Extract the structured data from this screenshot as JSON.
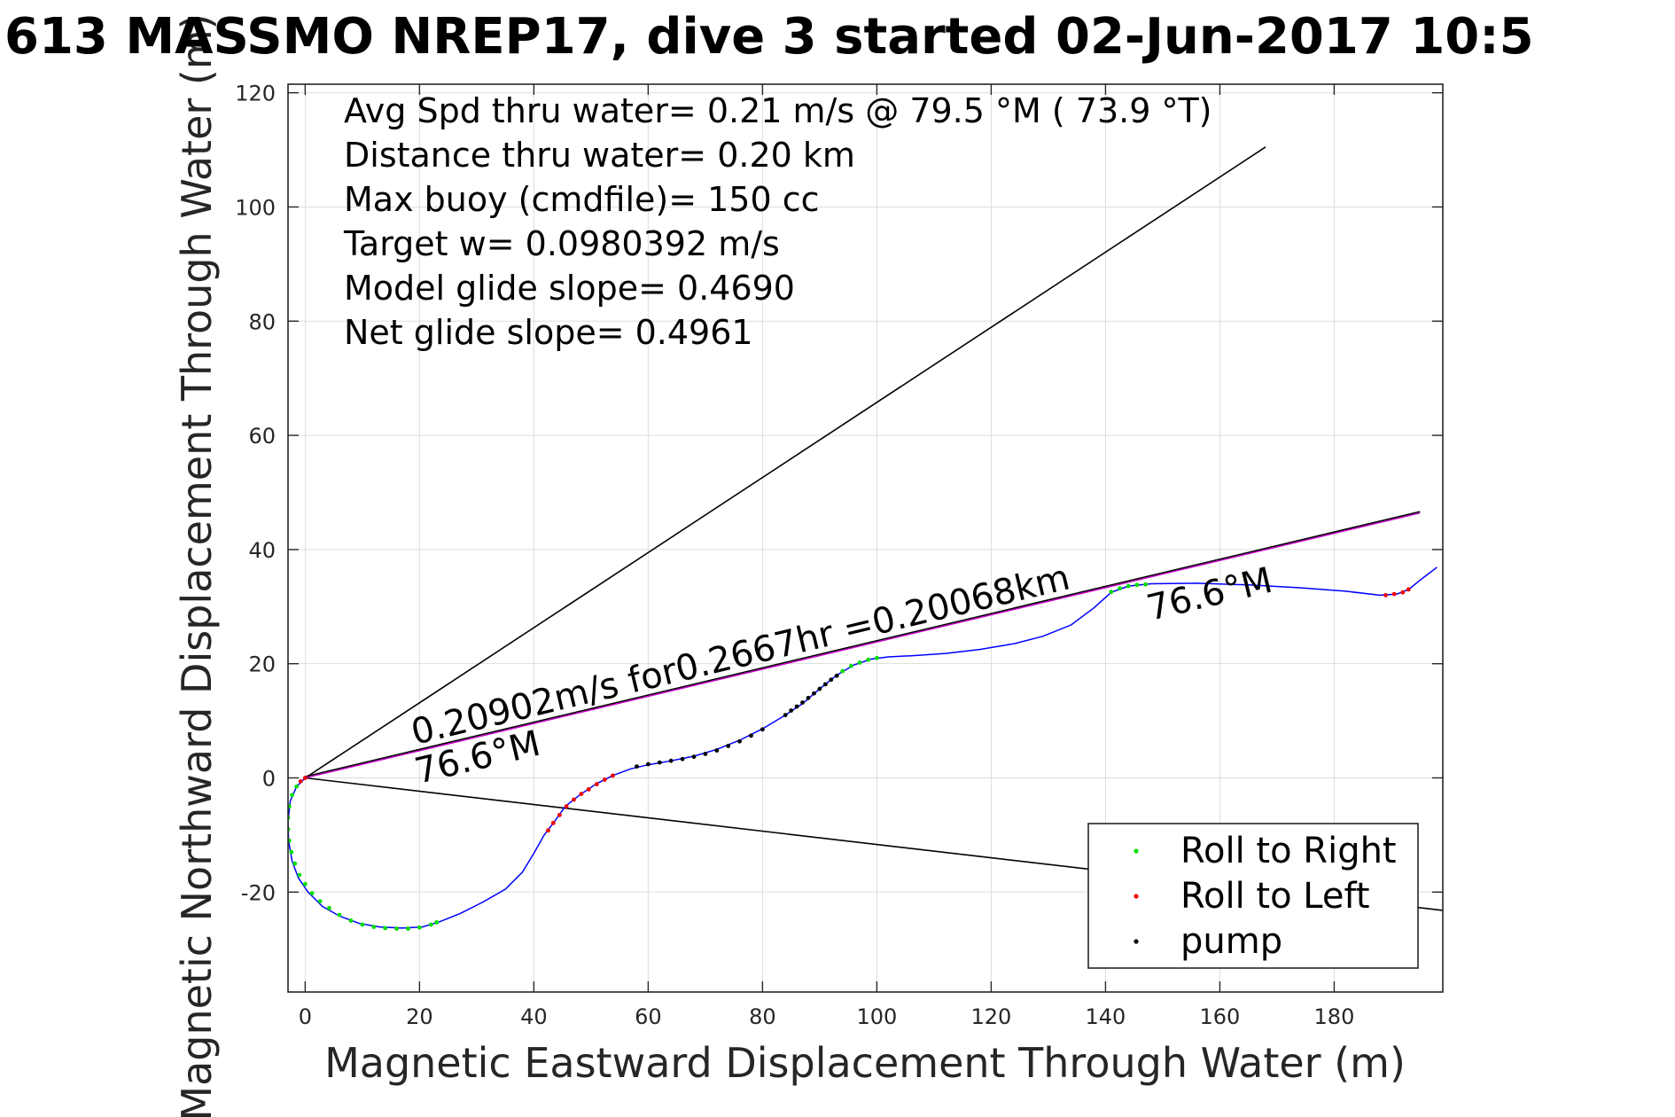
{
  "title": "613 MASSMO NREP17, dive 3 started 02-Jun-2017 10:5",
  "stats": [
    "Avg Spd thru water=  0.21 m/s @  79.5 °M ( 73.9 °T)",
    "Distance thru water=  0.20 km",
    "Max buoy (cmdfile)= 150 cc",
    "Target w= 0.0980392 m/s",
    "Model glide slope= 0.4690",
    "Net glide slope= 0.4961"
  ],
  "annotations": {
    "speed_text": "0.20902m/s for0.2667hr =0.20068km",
    "heading_start": "76.6°M",
    "heading_end": "76.6°M"
  },
  "legend": {
    "roll_right": "Roll to Right",
    "roll_left": "Roll to Left",
    "pump": "pump"
  },
  "colors": {
    "track": "#0000ff",
    "roll_right": "#00dd00",
    "roll_left": "#ee0000",
    "pump": "#000000",
    "net_line": "#cc00cc",
    "reference_lines": "#000000"
  },
  "chart_data": {
    "type": "line",
    "xlabel": "Magnetic Eastward Displacement Through Water (m)",
    "ylabel": "Magnetic Northward Displacement Through Water (m)",
    "xlim": [
      -3,
      199
    ],
    "ylim": [
      -37.5,
      121.5
    ],
    "xticks": [
      0,
      20,
      40,
      60,
      80,
      100,
      120,
      140,
      160,
      180
    ],
    "yticks": [
      -20,
      0,
      20,
      40,
      60,
      80,
      100,
      120
    ],
    "grid": true,
    "legend_position": "bottom-right",
    "track": [
      [
        0,
        0
      ],
      [
        -1.5,
        -1.5
      ],
      [
        -2.6,
        -4
      ],
      [
        -3,
        -7.5
      ],
      [
        -2.9,
        -11
      ],
      [
        -2.3,
        -14.5
      ],
      [
        -1.2,
        -17.5
      ],
      [
        0.5,
        -20
      ],
      [
        3,
        -22.5
      ],
      [
        6,
        -24.2
      ],
      [
        9.5,
        -25.5
      ],
      [
        13,
        -26.1
      ],
      [
        17,
        -26.3
      ],
      [
        20.5,
        -26.1
      ],
      [
        23.5,
        -25.2
      ],
      [
        27,
        -23.8
      ],
      [
        31,
        -21.8
      ],
      [
        35,
        -19.5
      ],
      [
        38,
        -16.5
      ],
      [
        40,
        -13.2
      ],
      [
        41.8,
        -10
      ],
      [
        43.5,
        -7.8
      ],
      [
        45.5,
        -5
      ],
      [
        48,
        -3
      ],
      [
        51,
        -1
      ],
      [
        54,
        0.5
      ],
      [
        57,
        1.6
      ],
      [
        60,
        2.3
      ],
      [
        64,
        3
      ],
      [
        68,
        3.8
      ],
      [
        72,
        5
      ],
      [
        76,
        6.6
      ],
      [
        80,
        8.6
      ],
      [
        84,
        11
      ],
      [
        87,
        13
      ],
      [
        90,
        15.6
      ],
      [
        93,
        18
      ],
      [
        96,
        19.8
      ],
      [
        99,
        20.8
      ],
      [
        102,
        21.2
      ],
      [
        106,
        21.4
      ],
      [
        112,
        21.8
      ],
      [
        118,
        22.5
      ],
      [
        124,
        23.5
      ],
      [
        129,
        24.8
      ],
      [
        134,
        26.8
      ],
      [
        138,
        29.8
      ],
      [
        141,
        32.5
      ],
      [
        144,
        33.6
      ],
      [
        148,
        34
      ],
      [
        156,
        34.1
      ],
      [
        165,
        33.8
      ],
      [
        174,
        33.3
      ],
      [
        182,
        32.7
      ],
      [
        188,
        32
      ],
      [
        191,
        32.2
      ],
      [
        193,
        33
      ],
      [
        195.5,
        35
      ],
      [
        198,
        36.9
      ]
    ],
    "markers": {
      "roll_right": [
        [
          -1.5,
          -1.5
        ],
        [
          -2.3,
          -3
        ],
        [
          -2.8,
          -5
        ],
        [
          -3,
          -7
        ],
        [
          -3,
          -9
        ],
        [
          -2.8,
          -11
        ],
        [
          -2.4,
          -13
        ],
        [
          -1.8,
          -15
        ],
        [
          -1,
          -17
        ],
        [
          0,
          -18.6
        ],
        [
          1.2,
          -20.2
        ],
        [
          2.6,
          -21.6
        ],
        [
          4.2,
          -22.8
        ],
        [
          6,
          -24
        ],
        [
          8,
          -25
        ],
        [
          10,
          -25.7
        ],
        [
          12,
          -26.1
        ],
        [
          14,
          -26.3
        ],
        [
          16,
          -26.4
        ],
        [
          18,
          -26.4
        ],
        [
          20,
          -26.2
        ],
        [
          22,
          -25.7
        ],
        [
          23,
          -25.3
        ],
        [
          94,
          18.7
        ],
        [
          95.5,
          19.6
        ],
        [
          97,
          20.2
        ],
        [
          98.5,
          20.7
        ],
        [
          100,
          21
        ],
        [
          141,
          32.6
        ],
        [
          142.5,
          33.2
        ],
        [
          144,
          33.6
        ],
        [
          145.5,
          33.8
        ],
        [
          147,
          33.9
        ]
      ],
      "roll_left": [
        [
          0,
          0
        ],
        [
          -0.8,
          -0.6
        ],
        [
          42.5,
          -9.2
        ],
        [
          43.4,
          -7.9
        ],
        [
          44.5,
          -6.5
        ],
        [
          45.7,
          -5
        ],
        [
          47,
          -3.8
        ],
        [
          48.3,
          -2.8
        ],
        [
          49.6,
          -2
        ],
        [
          51,
          -1.1
        ],
        [
          52.4,
          -0.3
        ],
        [
          53.8,
          0.4
        ],
        [
          189,
          32
        ],
        [
          190.5,
          32.2
        ],
        [
          192,
          32.5
        ],
        [
          193,
          33
        ]
      ],
      "pump": [
        [
          58,
          2
        ],
        [
          60,
          2.4
        ],
        [
          62,
          2.7
        ],
        [
          64,
          3
        ],
        [
          66,
          3.3
        ],
        [
          68,
          3.7
        ],
        [
          70,
          4.2
        ],
        [
          72,
          4.8
        ],
        [
          74,
          5.6
        ],
        [
          76,
          6.4
        ],
        [
          78,
          7.4
        ],
        [
          80,
          8.5
        ],
        [
          84,
          11
        ],
        [
          85,
          11.8
        ],
        [
          86,
          12.5
        ],
        [
          87,
          13.2
        ],
        [
          88,
          14
        ],
        [
          89,
          14.8
        ],
        [
          90,
          15.6
        ],
        [
          91,
          16.4
        ],
        [
          92,
          17.2
        ],
        [
          93,
          17.9
        ]
      ]
    },
    "reference_lines": {
      "net_direction": [
        [
          0,
          0
        ],
        [
          195,
          46.4
        ]
      ],
      "upper_bound": [
        [
          0,
          0
        ],
        [
          168,
          110.5
        ]
      ],
      "lower_bound": [
        [
          0,
          0
        ],
        [
          199,
          -23.2
        ]
      ]
    }
  }
}
